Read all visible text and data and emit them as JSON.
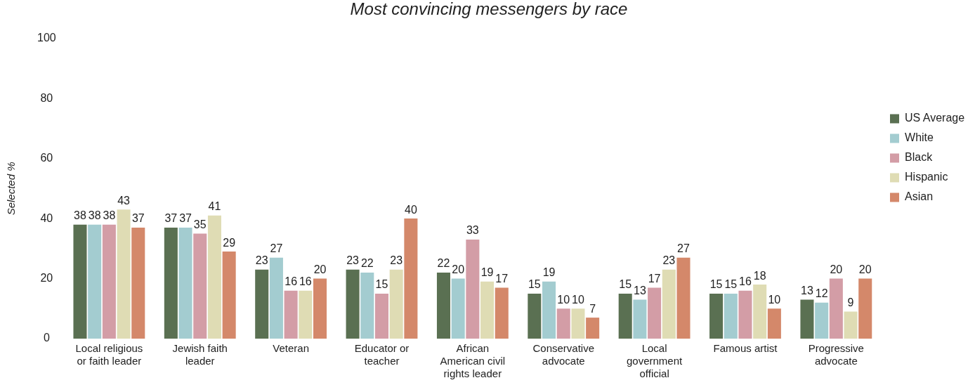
{
  "chart_data": {
    "type": "bar",
    "title": "Most convincing messengers by race",
    "ylabel": "Selected %",
    "categories": [
      "Local religious or faith leader",
      "Jewish faith leader",
      "Veteran",
      "Educator or teacher",
      "African American civil rights leader",
      "Conservative advocate",
      "Local government official",
      "Famous artist",
      "Progressive advocate"
    ],
    "series": [
      {
        "name": "US Average",
        "color": "#5a7052",
        "values": [
          38,
          37,
          23,
          23,
          22,
          15,
          15,
          15,
          13
        ]
      },
      {
        "name": "White",
        "color": "#a3ccd0",
        "values": [
          38,
          37,
          27,
          22,
          20,
          19,
          13,
          15,
          12
        ]
      },
      {
        "name": "Black",
        "color": "#d39da6",
        "values": [
          38,
          35,
          16,
          15,
          33,
          10,
          17,
          16,
          20
        ]
      },
      {
        "name": "Hispanic",
        "color": "#dfdcb4",
        "values": [
          43,
          41,
          16,
          23,
          19,
          10,
          23,
          18,
          9
        ]
      },
      {
        "name": "Asian",
        "color": "#d4886a",
        "values": [
          37,
          29,
          20,
          40,
          17,
          7,
          27,
          10,
          20
        ]
      }
    ],
    "ylim": [
      0,
      100
    ],
    "yticks": [
      0,
      20,
      40,
      60,
      80,
      100
    ],
    "legend": "right",
    "data_labels": true
  }
}
